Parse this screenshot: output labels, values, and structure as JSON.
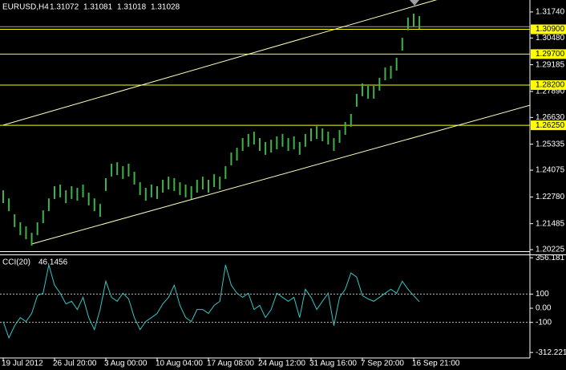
{
  "header": {
    "symbol": "EURUSD,H4",
    "ohlc": [
      1.31072,
      1.31081,
      1.31018,
      1.31028
    ]
  },
  "chart_data": [
    {
      "type": "range-bar",
      "categories": [
        "19 Jul 2012",
        null,
        null,
        null,
        null,
        null,
        null,
        null,
        null,
        "26 Jul 20:00",
        null,
        null,
        null,
        null,
        null,
        null,
        null,
        null,
        "3 Aug 00:00",
        null,
        null,
        null,
        null,
        null,
        null,
        null,
        null,
        "10 Aug 04:00",
        null,
        null,
        null,
        null,
        null,
        null,
        null,
        null,
        "17 Aug 08:00",
        null,
        null,
        null,
        null,
        null,
        null,
        null,
        null,
        "24 Aug 12:00",
        null,
        null,
        null,
        null,
        null,
        null,
        null,
        null,
        "31 Aug 16:00",
        null,
        null,
        null,
        null,
        null,
        null,
        null,
        null,
        "7 Sep 20:00",
        null,
        null,
        null,
        null,
        null,
        null,
        null,
        null,
        "16 Sep 21:00",
        null
      ],
      "high": [
        1.231,
        1.2271,
        1.2194,
        1.2155,
        1.2135,
        1.2104,
        1.2155,
        1.2213,
        1.2271,
        1.233,
        1.2338,
        1.231,
        1.233,
        1.2322,
        1.2338,
        1.2299,
        1.2271,
        1.2244,
        1.2369,
        1.2439,
        1.2446,
        1.2427,
        1.2439,
        1.24,
        1.2349,
        1.2322,
        1.2338,
        1.233,
        1.2361,
        1.2376,
        1.2369,
        1.2349,
        1.2338,
        1.233,
        1.2361,
        1.2376,
        1.2361,
        1.2388,
        1.2376,
        1.2427,
        1.2493,
        1.2516,
        1.2563,
        1.2583,
        1.2594,
        1.2563,
        1.2544,
        1.2555,
        1.2571,
        1.2583,
        1.2563,
        1.2571,
        1.2544,
        1.2583,
        1.261,
        1.2621,
        1.261,
        1.2594,
        1.2563,
        1.2602,
        1.2641,
        1.268,
        1.2777,
        1.2828,
        1.2816,
        1.2816,
        1.2855,
        1.2905,
        1.2913,
        1.2952,
        1.3049,
        1.3147,
        1.3166,
        1.3154
      ],
      "low": [
        1.2248,
        1.2209,
        1.2132,
        1.2093,
        1.2073,
        1.2042,
        1.2093,
        1.2151,
        1.2209,
        1.2268,
        1.2276,
        1.2248,
        1.2268,
        1.226,
        1.2276,
        1.2237,
        1.2209,
        1.2182,
        1.2307,
        1.2377,
        1.2384,
        1.2365,
        1.2377,
        1.2338,
        1.2287,
        1.226,
        1.2276,
        1.2268,
        1.2299,
        1.2314,
        1.2307,
        1.2287,
        1.2276,
        1.2268,
        1.2299,
        1.2314,
        1.2299,
        1.2326,
        1.2314,
        1.2365,
        1.2431,
        1.2454,
        1.2501,
        1.2521,
        1.2532,
        1.2501,
        1.2482,
        1.2493,
        1.2509,
        1.2521,
        1.2501,
        1.2509,
        1.2482,
        1.2521,
        1.2548,
        1.2559,
        1.2548,
        1.2532,
        1.2501,
        1.254,
        1.2579,
        1.2618,
        1.2715,
        1.2766,
        1.2754,
        1.2754,
        1.2793,
        1.2843,
        1.2851,
        1.289,
        1.2987,
        1.3085,
        1.3104,
        1.3092
      ],
      "color": "#3cb44b",
      "ylim": [
        1.2015,
        1.3232
      ],
      "yticks": [
        {
          "value": 1.3174,
          "label": "1.31740"
        },
        {
          "value": 1.3048,
          "label": "1.30480"
        },
        1.29185,
        {
          "value": 1.2789,
          "label": "1.27890"
        },
        {
          "value": 1.2663,
          "label": "1.26630"
        },
        1.25335,
        1.24075,
        {
          "value": 1.2278,
          "label": "1.22780"
        },
        1.21485,
        1.20225
      ],
      "levels": [
        {
          "value": 1.309,
          "label": "1.30900"
        },
        {
          "value": 1.297,
          "label": "1.29700"
        },
        {
          "value": 1.282,
          "label": "1.28200"
        },
        {
          "value": 1.2625,
          "label": "1.26250"
        }
      ],
      "level_color": "#ffff00",
      "trendlines": [
        {
          "from": [
            0,
            1.2626
          ],
          "to": [
            73,
            1.3209
          ]
        },
        {
          "from": [
            5,
            1.205
          ],
          "to": [
            73,
            1.2573
          ]
        }
      ],
      "trendline_color": "#ffffc0"
    },
    {
      "type": "line",
      "title": "CCI(20)",
      "last_value": 46.1456,
      "values": [
        -94,
        -209,
        -123,
        -66,
        -94,
        -37,
        89,
        106,
        306,
        163,
        106,
        31,
        49,
        -9,
        77,
        -66,
        -151,
        -9,
        191,
        77,
        49,
        106,
        66,
        -66,
        -151,
        -94,
        -66,
        -37,
        31,
        77,
        163,
        20,
        -66,
        -94,
        -9,
        -9,
        -37,
        20,
        49,
        306,
        163,
        106,
        77,
        106,
        -9,
        20,
        -66,
        -9,
        106,
        77,
        49,
        77,
        -66,
        134,
        77,
        -9,
        49,
        106,
        -123,
        77,
        134,
        249,
        220,
        89,
        66,
        49,
        77,
        106,
        134,
        106,
        191,
        134,
        89,
        46
      ],
      "color": "#33c6c6",
      "ylim": [
        -351,
        374
      ],
      "yticks": [
        356.181,
        100,
        {
          "value": 0,
          "label": "0.00"
        },
        -100,
        -312.221
      ],
      "levels": [
        100,
        -100
      ]
    }
  ]
}
